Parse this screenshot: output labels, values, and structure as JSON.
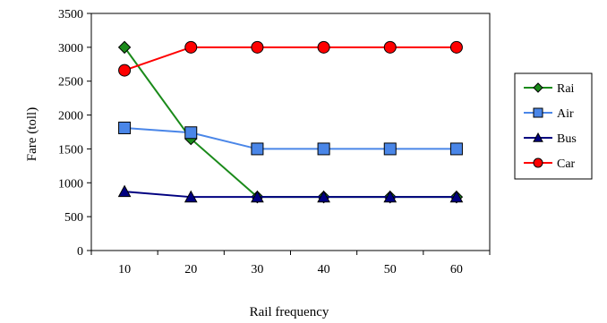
{
  "chart_data": {
    "type": "line",
    "title": "",
    "xlabel": "Rail frequency",
    "ylabel": "Fare (toll)",
    "x": [
      10,
      20,
      30,
      40,
      50,
      60
    ],
    "ylim": [
      0,
      3500
    ],
    "yticks": [
      0,
      500,
      1000,
      1500,
      2000,
      2500,
      3000,
      3500
    ],
    "grid": false,
    "legend": "right",
    "series": [
      {
        "name": "Rai",
        "color": "#1a8a1a",
        "marker": "diamond",
        "values": [
          3000,
          1650,
          790,
          790,
          790,
          790
        ]
      },
      {
        "name": "Air",
        "color": "#4a86e8",
        "marker": "square",
        "values": [
          1810,
          1740,
          1500,
          1500,
          1500,
          1500
        ]
      },
      {
        "name": "Bus",
        "color": "#000080",
        "marker": "triangle",
        "values": [
          870,
          790,
          790,
          790,
          790,
          790
        ]
      },
      {
        "name": "Car",
        "color": "#ff0000",
        "marker": "circle",
        "values": [
          2660,
          3000,
          3000,
          3000,
          3000,
          3000
        ]
      }
    ]
  }
}
